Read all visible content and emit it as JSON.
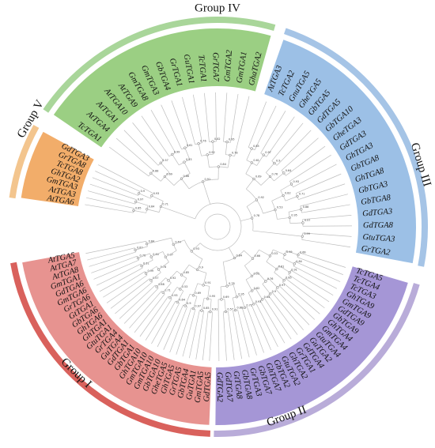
{
  "groups": [
    {
      "name": "Group V",
      "ring_color": "#f3c58e",
      "band_color": "#f2ad6a",
      "leaves": [
        "AtTGA6",
        "AtTGA3",
        "GmTGA3",
        "GhTGA2",
        "TcTGA8",
        "GrTGA8",
        "GdTGA3"
      ]
    },
    {
      "name": "Group IV",
      "ring_color": "#a9d69a",
      "band_color": "#9bcf83",
      "leaves": [
        "TcTGA1",
        "AtTGA4",
        "AtTGA1",
        "AtTGA10",
        "AtTGA9",
        "GmTGA8",
        "GmTGA3",
        "GbTGA4",
        "GrTGA1",
        "GuTGA1",
        "TcTGA1",
        "GrTGA7",
        "GmTGA2",
        "GmTGA1",
        "GhaTGA2"
      ]
    },
    {
      "name": "Group III",
      "ring_color": "#a5c4e6",
      "band_color": "#9cc0e6",
      "leaves": [
        "AtTGA3",
        "TcTGA2",
        "GnuTGA5",
        "GheTGA5",
        "GbTGA5",
        "GdTGA5",
        "GbTGA10",
        "GheTGA3",
        "GdTGA3",
        "GhTGA3",
        "GbTGA8",
        "GhTGA8",
        "GbTGA3",
        "GbTGA8",
        "GdTGA3",
        "GdTGA8",
        "GtuTGA3",
        "GrTGA2"
      ]
    },
    {
      "name": "Group II",
      "ring_color": "#b9acd9",
      "band_color": "#a596d6",
      "leaves": [
        "TcTGA5",
        "TcTGA4",
        "TcTGA3",
        "GhTGA9",
        "GmTGA9",
        "GdTGA9",
        "GbTGA9",
        "GhTGA4",
        "GmTGA4",
        "GtuTGA4",
        "GuTGA2",
        "GdTGA4",
        "GrTGA1",
        "GhTGA2",
        "GtuTGA2",
        "GbTGA2",
        "GhTGA7",
        "GbTGA7",
        "GrTGA3",
        "GbTGA8",
        "GtTGA8",
        "GdTGA7",
        "GdTGA2"
      ]
    },
    {
      "name": "Group I",
      "ring_color": "#d9615c",
      "band_color": "#e79390",
      "leaves": [
        "GdTGA5",
        "GmTGA5",
        "GuTGA1",
        "GbTGA4",
        "GrTGA5",
        "GhTGA5",
        "GheTGA5",
        "GbTGA10",
        "GmTGA10",
        "GmTGA10",
        "GhTGA10",
        "GbTGA1",
        "GdTGA1",
        "GuTGA4",
        "GrTGA4",
        "GtuTGA1",
        "GhTGA1",
        "GhTGA6",
        "GbTGA6",
        "GtTGA1",
        "GrTGA6",
        "GmTGA6",
        "GdTGA6",
        "GmTGA1",
        "AtTGA8",
        "AtTGA7",
        "AtTGA5"
      ]
    }
  ],
  "bootstrap_values": [
    "0.85",
    "0.97",
    "0.9",
    "0.64",
    "0.93",
    "0.71",
    "0.88",
    "0.57",
    "0.99",
    "0.61",
    "0.76",
    "0.82",
    "0.95",
    "0.69",
    "0.53",
    "0.92",
    "0.78",
    "0.66",
    "0.84",
    "0.91"
  ]
}
